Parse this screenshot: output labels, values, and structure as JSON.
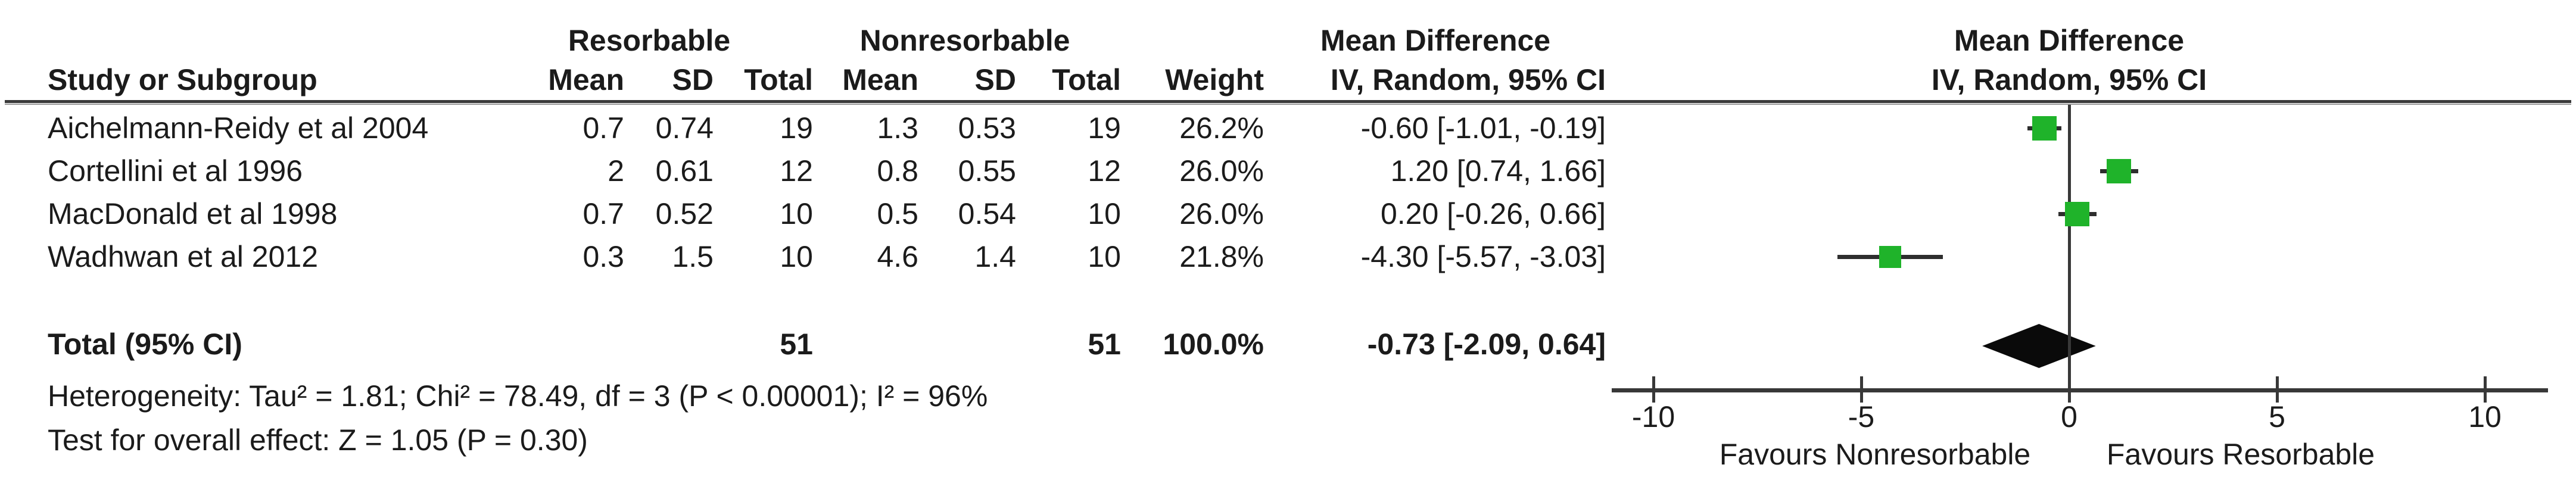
{
  "table": {
    "group_headers": {
      "resorbable": "Resorbable",
      "nonresorbable": "Nonresorbable",
      "md_col": "Mean Difference",
      "md_plot": "Mean Difference"
    },
    "col_headers": {
      "study": "Study or Subgroup",
      "mean_r": "Mean",
      "sd_r": "SD",
      "total_r": "Total",
      "mean_n": "Mean",
      "sd_n": "SD",
      "total_n": "Total",
      "weight": "Weight",
      "ci": "IV, Random, 95% CI",
      "ci_plot": "IV, Random, 95% CI"
    },
    "rows": [
      {
        "study": "Aichelmann-Reidy et al 2004",
        "r_mean": "0.7",
        "r_sd": "0.74",
        "r_total": "19",
        "n_mean": "1.3",
        "n_sd": "0.53",
        "n_total": "19",
        "weight": "26.2%",
        "ci": "-0.60 [-1.01, -0.19]"
      },
      {
        "study": "Cortellini et al 1996",
        "r_mean": "2",
        "r_sd": "0.61",
        "r_total": "12",
        "n_mean": "0.8",
        "n_sd": "0.55",
        "n_total": "12",
        "weight": "26.0%",
        "ci": "1.20 [0.74, 1.66]"
      },
      {
        "study": "MacDonald et al 1998",
        "r_mean": "0.7",
        "r_sd": "0.52",
        "r_total": "10",
        "n_mean": "0.5",
        "n_sd": "0.54",
        "n_total": "10",
        "weight": "26.0%",
        "ci": "0.20 [-0.26, 0.66]"
      },
      {
        "study": "Wadhwan et al 2012",
        "r_mean": "0.3",
        "r_sd": "1.5",
        "r_total": "10",
        "n_mean": "4.6",
        "n_sd": "1.4",
        "n_total": "10",
        "weight": "21.8%",
        "ci": "-4.30 [-5.57, -3.03]"
      }
    ],
    "total_row": {
      "label": "Total (95% CI)",
      "r_total": "51",
      "n_total": "51",
      "weight": "100.0%",
      "ci": "-0.73 [-2.09, 0.64]"
    },
    "footnotes": {
      "heterogeneity": "Heterogeneity: Tau² = 1.81; Chi² = 78.49, df = 3 (P < 0.00001); I² = 96%",
      "overall": "Test for overall effect: Z = 1.05 (P = 0.30)"
    }
  },
  "chart_data": {
    "type": "forest",
    "title": "Mean Difference",
    "subtitle": "IV, Random, 95% CI",
    "xlim": [
      -10,
      10
    ],
    "x_ticks": [
      -10,
      -5,
      0,
      5,
      10
    ],
    "favours_left": "Favours Nonresorbable",
    "favours_right": "Favours Resorbable",
    "marker_color": "#1fb32a",
    "line_color": "#383838",
    "studies": [
      {
        "name": "Aichelmann-Reidy et al 2004",
        "md": -0.6,
        "ci_low": -1.01,
        "ci_high": -0.19,
        "weight": 26.2
      },
      {
        "name": "Cortellini et al 1996",
        "md": 1.2,
        "ci_low": 0.74,
        "ci_high": 1.66,
        "weight": 26.0
      },
      {
        "name": "MacDonald et al 1998",
        "md": 0.2,
        "ci_low": -0.26,
        "ci_high": 0.66,
        "weight": 26.0
      },
      {
        "name": "Wadhwan et al 2012",
        "md": -4.3,
        "ci_low": -5.57,
        "ci_high": -3.03,
        "weight": 21.8
      }
    ],
    "total": {
      "md": -0.73,
      "ci_low": -2.09,
      "ci_high": 0.64,
      "weight": 100.0
    }
  }
}
